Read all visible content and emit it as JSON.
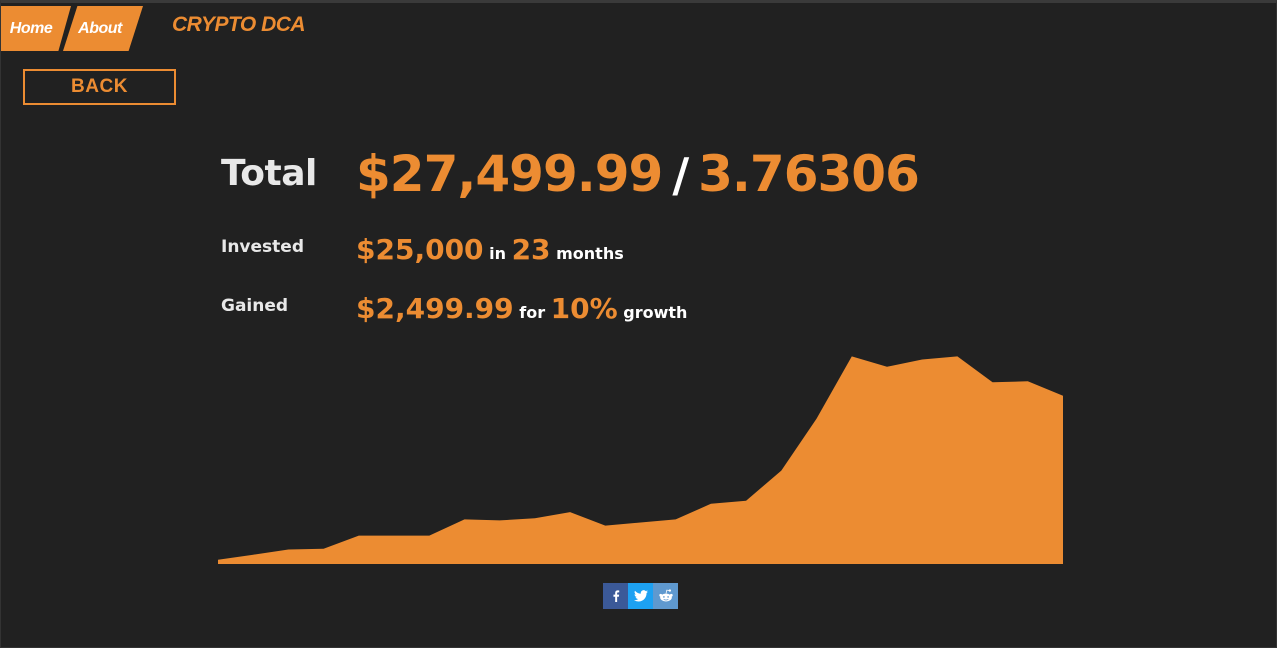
{
  "nav": {
    "tabs": [
      {
        "label": "Home"
      },
      {
        "label": "About"
      }
    ],
    "brand": "CRYPTO DCA"
  },
  "back_label": "BACK",
  "stats": {
    "total": {
      "label": "Total",
      "usd": "$27,499.99",
      "separator": "/",
      "coins": "3.76306"
    },
    "invested": {
      "label": "Invested",
      "amount": "$25,000",
      "in_word": "in",
      "months": "23",
      "months_word": "months"
    },
    "gained": {
      "label": "Gained",
      "amount": "$2,499.99",
      "for_word": "for",
      "percent": "10%",
      "growth_word": "growth"
    }
  },
  "colors": {
    "accent": "#ec8c32",
    "background": "#212121",
    "text": "#e8e8e8",
    "facebook": "#3b5998",
    "twitter": "#1da1f2",
    "reddit": "#5f99cf"
  },
  "chart_data": {
    "type": "area",
    "series_values": [
      0.2,
      0.45,
      0.7,
      0.73,
      1.37,
      1.37,
      1.37,
      2.15,
      2.1,
      2.2,
      2.5,
      1.85,
      2.0,
      2.15,
      2.9,
      3.05,
      4.5,
      7.0,
      10.0,
      9.5,
      9.85,
      10.0,
      8.75,
      8.8,
      8.1
    ],
    "ylim": [
      0,
      10.5
    ],
    "grid": false,
    "legend": "none"
  },
  "share": {
    "buttons": [
      {
        "name": "facebook",
        "icon": "facebook-icon"
      },
      {
        "name": "twitter",
        "icon": "twitter-icon"
      },
      {
        "name": "reddit",
        "icon": "reddit-icon"
      }
    ]
  }
}
